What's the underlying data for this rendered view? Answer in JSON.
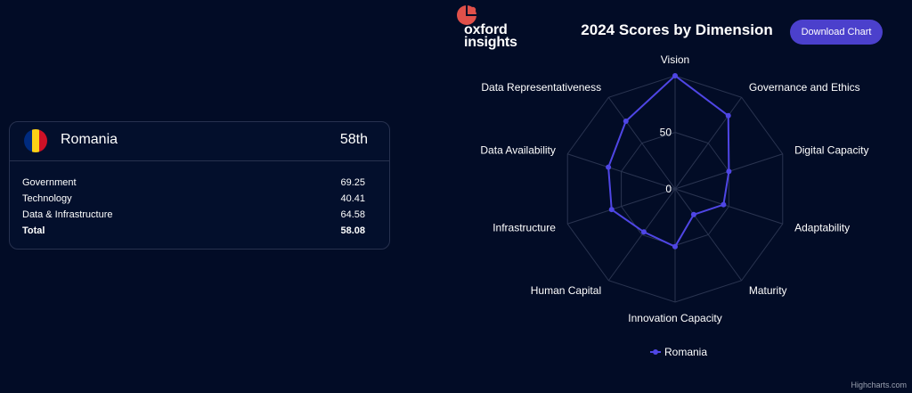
{
  "brand": {
    "logo_line1": "oxford",
    "logo_line2": "insights",
    "logo_color": "#e0504a"
  },
  "card": {
    "country": "Romania",
    "rank": "58th",
    "flag_colors": [
      "#002b7f",
      "#fcd116",
      "#ce1126"
    ],
    "rows": [
      {
        "label": "Government",
        "value": "69.25"
      },
      {
        "label": "Technology",
        "value": "40.41"
      },
      {
        "label": "Data & Infrastructure",
        "value": "64.58"
      },
      {
        "label": "Total",
        "value": "58.08"
      }
    ]
  },
  "header": {
    "download_label": "Download Chart"
  },
  "credits": "Highcharts.com",
  "colors": {
    "series": "#4f46e5",
    "grid": "#2a3450",
    "background": "#020c26"
  },
  "chart_data": {
    "type": "radar",
    "title": "2024 Scores by Dimension",
    "categories": [
      "Vision",
      "Governance and Ethics",
      "Digital Capacity",
      "Adaptability",
      "Maturity",
      "Innovation Capacity",
      "Human Capital",
      "Infrastructure",
      "Data Availability",
      "Data Representativeness"
    ],
    "series": [
      {
        "name": "Romania",
        "values": [
          100,
          80,
          50,
          45,
          28,
          51,
          47,
          59,
          62,
          74
        ]
      }
    ],
    "rlim": [
      0,
      100
    ],
    "tick_labels": [
      "0",
      "50"
    ],
    "legend": "bottom-center",
    "grid": true
  }
}
